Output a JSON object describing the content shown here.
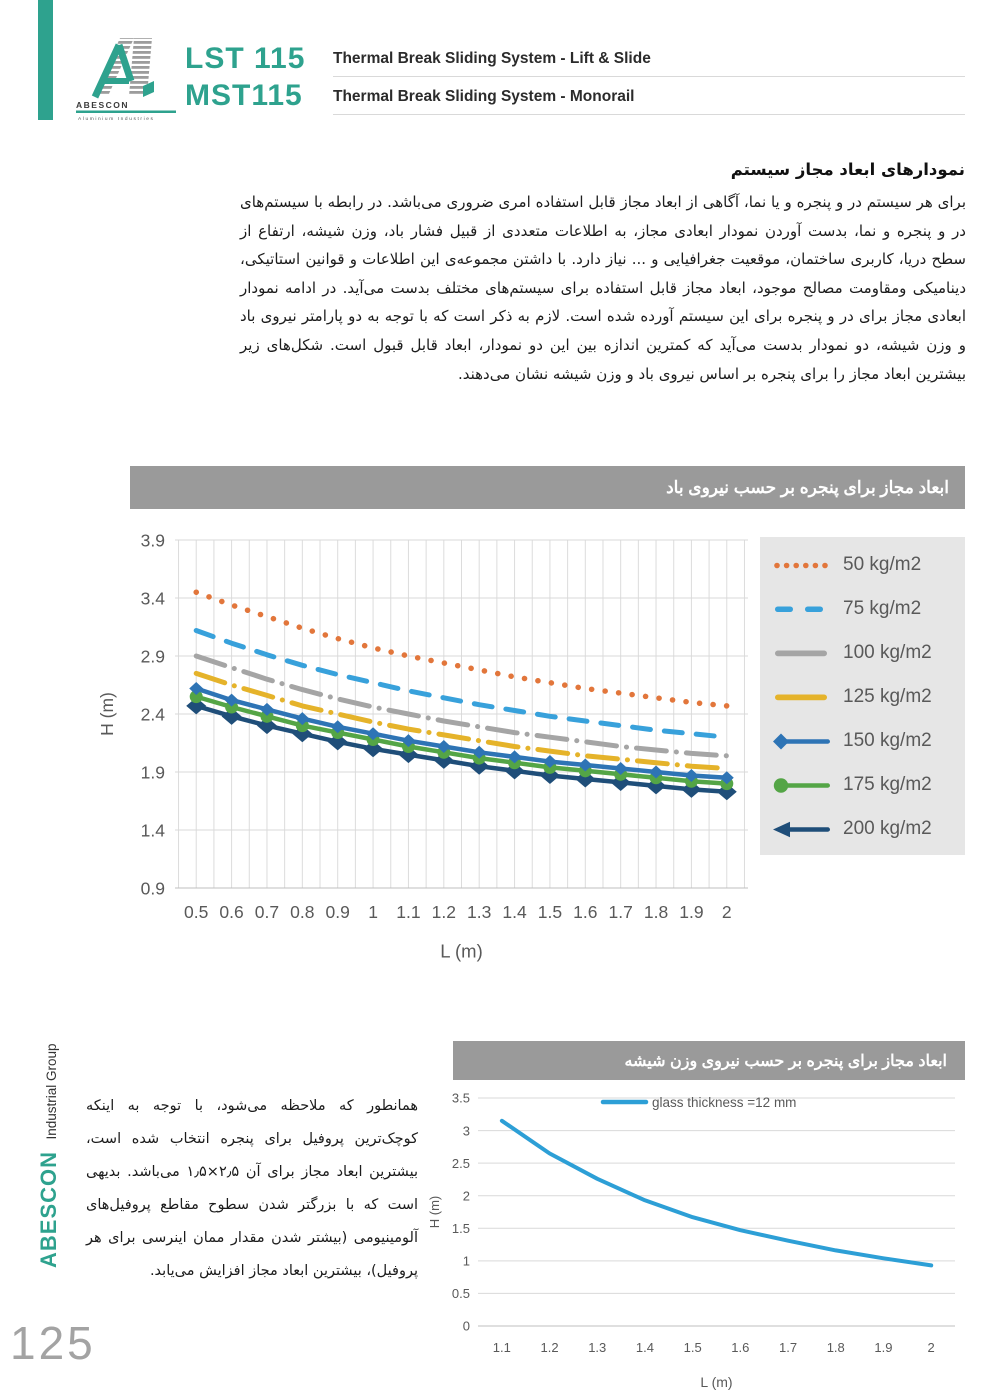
{
  "header": {
    "brand_line1": "LST 115",
    "brand_line2": "MST115",
    "subtitle1": "Thermal Break Sliding System - Lift & Slide",
    "subtitle2": "Thermal Break Sliding System - Monorail",
    "logo_text": "ABESCON",
    "logo_subtext": "Aluminium  Industries"
  },
  "intro": {
    "heading": "نمودارهای ابعاد مجاز سیستم",
    "paragraph": "برای هر سیستم در و پنجره و یا نما، آگاهی از ابعاد مجاز قابل استفاده امری ضروری می‌باشد. در رابطه با سیستم‌های در و پنجره و نما، بدست آوردن نمودار ابعادی مجاز، به اطلاعات متعددی از قبیل فشار باد، وزن شیشه، ارتفاع از سطح دریا، کاربری ساختمان، موقعیت جغرافیایی و ... نیاز دارد. با داشتن مجموعه‌ی این اطلاعات و قوانین استاتیکی، دینامیکی ومقاومت مصالح موجود، ابعاد مجاز قابل استفاده برای سیستم‌های مختلف بدست می‌آید. در ادامه نمودار ابعادی مجاز برای در و پنجره برای این سیستم آورده شده است. لازم به ذکر است که با توجه به دو پارامتر نیروی باد و وزن شیشه، دو نمودار بدست می‌آید که کمترین اندازه بین این دو نمودار، ابعاد قابل قبول است. شکل‌های زیر بیشترین ابعاد مجاز را برای پنجره بر اساس نیروی باد و وزن شیشه نشان می‌دهند."
  },
  "bottom_paragraph": "همانطور که ملاحظه می‌شود، با توجه به اینکه کوچک‌ترین پروفیل برای پنجره انتخاب شده است، بیشترین ابعاد مجاز برای آن ۲٫۵×۱٫۵ می‌باشد. بدیهی است که با بزرگتر شدن سطوح مقاطع پروفیل‌های آلومینیومی (بیشتر شدن مقدار ممان اینرسی برای هر پروفیل)، بیشترین ابعاد مجاز افزایش می‌یابد.",
  "sidebar": {
    "brand": "ABESCON",
    "suffix": "Industrial Group",
    "page_number": "125"
  },
  "colors": {
    "accent_teal": "#2EA28E",
    "title_bar_gray": "#9A9A9A",
    "legend_panel_gray": "#E6E6E6",
    "tick_text_gray": "#595959"
  },
  "chart_data": [
    {
      "type": "line",
      "title": "ابعاد مجاز برای پنجره بر حسب نیروی باد",
      "xlabel": "L (m)",
      "ylabel": "H (m)",
      "xlim": [
        0.44,
        2.06
      ],
      "ylim": [
        0.9,
        3.9
      ],
      "grid": "major-horizontal + minor-vertical",
      "legend_position": "right",
      "x": [
        0.5,
        0.6,
        0.7,
        0.8,
        0.9,
        1,
        1.1,
        1.2,
        1.3,
        1.4,
        1.5,
        1.6,
        1.7,
        1.8,
        1.9,
        2
      ],
      "xticks": [
        "0.5",
        "0.6",
        "0.7",
        "0.8",
        "0.9",
        "1",
        "1.1",
        "1.2",
        "1.3",
        "1.4",
        "1.5",
        "1.6",
        "1.7",
        "1.8",
        "1.9",
        "2"
      ],
      "yticks": [
        "3.9",
        "3.4",
        "2.9",
        "2.4",
        "1.9",
        "1.4",
        "0.9"
      ],
      "series": [
        {
          "name": "50 kg/m2",
          "color": "#E2763B",
          "style": "dotted",
          "marker": "none",
          "legend_marker": "dots",
          "values": [
            3.45,
            3.34,
            3.24,
            3.14,
            3.05,
            2.97,
            2.9,
            2.84,
            2.78,
            2.72,
            2.67,
            2.62,
            2.58,
            2.54,
            2.5,
            2.47
          ]
        },
        {
          "name": "75 kg/m2",
          "color": "#38A1DB",
          "style": "dashed",
          "marker": "none",
          "legend_marker": "dashes",
          "values": [
            3.12,
            3.01,
            2.91,
            2.82,
            2.74,
            2.67,
            2.6,
            2.54,
            2.48,
            2.43,
            2.38,
            2.34,
            2.3,
            2.26,
            2.23,
            2.2
          ]
        },
        {
          "name": "100 kg/m2",
          "color": "#A5A5A5",
          "style": "dashdot",
          "marker": "none",
          "legend_marker": "line",
          "values": [
            2.9,
            2.8,
            2.7,
            2.61,
            2.53,
            2.46,
            2.4,
            2.34,
            2.29,
            2.24,
            2.2,
            2.16,
            2.12,
            2.09,
            2.06,
            2.04
          ]
        },
        {
          "name": "125 kg/m2",
          "color": "#E5B32A",
          "style": "dashdot",
          "marker": "none",
          "legend_marker": "line",
          "values": [
            2.75,
            2.65,
            2.56,
            2.47,
            2.4,
            2.33,
            2.27,
            2.22,
            2.17,
            2.12,
            2.08,
            2.04,
            2.01,
            1.98,
            1.95,
            1.93
          ]
        },
        {
          "name": "150 kg/m2",
          "color": "#2E74B5",
          "style": "solid",
          "marker": "diamond",
          "legend_marker": "diamond-line",
          "values": [
            2.62,
            2.52,
            2.44,
            2.36,
            2.29,
            2.23,
            2.17,
            2.12,
            2.07,
            2.03,
            1.99,
            1.96,
            1.93,
            1.9,
            1.87,
            1.85
          ]
        },
        {
          "name": "175 kg/m2",
          "color": "#54A546",
          "style": "solid",
          "marker": "circle",
          "legend_marker": "circle-line",
          "values": [
            2.55,
            2.46,
            2.38,
            2.3,
            2.24,
            2.18,
            2.12,
            2.07,
            2.02,
            1.98,
            1.94,
            1.91,
            1.88,
            1.85,
            1.82,
            1.8
          ]
        },
        {
          "name": "200 kg/m2",
          "color": "#1F4E79",
          "style": "solid",
          "marker": "bigdiamond",
          "legend_marker": "arrow-line",
          "values": [
            2.47,
            2.38,
            2.3,
            2.23,
            2.16,
            2.1,
            2.05,
            2.0,
            1.95,
            1.91,
            1.87,
            1.84,
            1.81,
            1.78,
            1.75,
            1.73
          ]
        }
      ]
    },
    {
      "type": "line",
      "title": "ابعاد مجاز برای پنجره بر حسب نیروی وزن شیشه",
      "xlabel": "L (m)",
      "ylabel": "H (m)",
      "xlim": [
        1.05,
        2.05
      ],
      "ylim": [
        0,
        3.5
      ],
      "grid": "horizontal-only",
      "legend_position": "top-center",
      "x": [
        1.1,
        1.2,
        1.3,
        1.4,
        1.5,
        1.6,
        1.7,
        1.8,
        1.9,
        2
      ],
      "xticks": [
        "1.1",
        "1.2",
        "1.3",
        "1.4",
        "1.5",
        "1.6",
        "1.7",
        "1.8",
        "1.9",
        "2"
      ],
      "yticks": [
        "3.5",
        "3",
        "2.5",
        "2",
        "1.5",
        "1",
        "0.5",
        "0"
      ],
      "series": [
        {
          "name": "glass thickness =12 mm",
          "color": "#2D9FD6",
          "style": "solid",
          "marker": "none",
          "legend_marker": "line",
          "values": [
            3.15,
            2.65,
            2.26,
            1.93,
            1.67,
            1.47,
            1.31,
            1.16,
            1.04,
            0.93
          ]
        }
      ]
    }
  ]
}
